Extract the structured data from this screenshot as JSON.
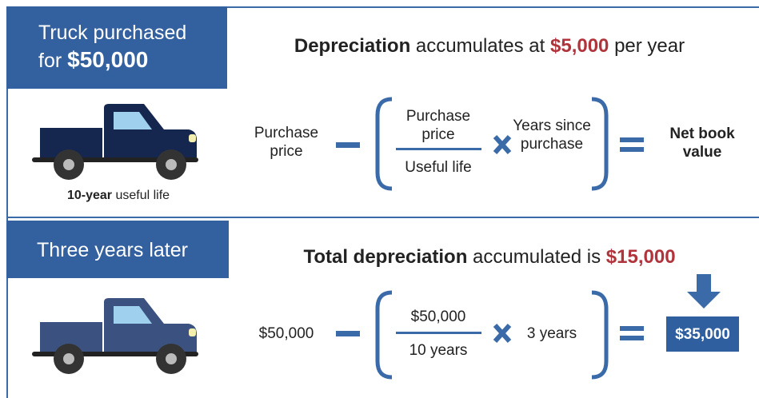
{
  "top": {
    "header": {
      "line1": "Truck purchased",
      "line2": "for",
      "amount": "$50,000"
    },
    "headline": {
      "bold": "Depreciation",
      "text": "accumulates at",
      "amount": "$5,000",
      "suffix": "per year"
    },
    "caption": {
      "bold": "10-year",
      "text": "useful life"
    },
    "formula": {
      "term": "Purchase price",
      "numerator": "Purchase price",
      "denominator": "Useful life",
      "factor": "Years since purchase",
      "result": "Net book value"
    }
  },
  "bottom": {
    "header": "Three years later",
    "headline": {
      "bold": "Total depreciation",
      "text": "accumulated is",
      "amount": "$15,000"
    },
    "formula": {
      "term": "$50,000",
      "numerator": "$50,000",
      "denominator": "10 years",
      "factor": "3 years",
      "result": "$35,000"
    }
  }
}
